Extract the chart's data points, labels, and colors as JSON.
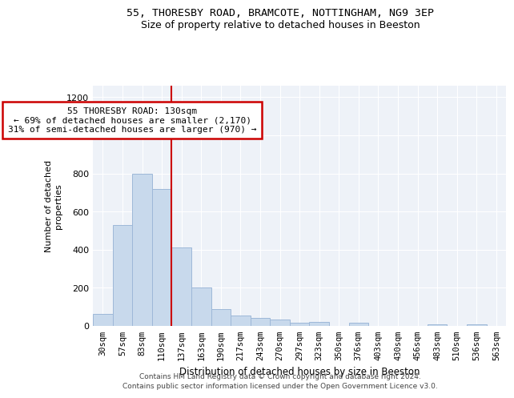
{
  "title1": "55, THORESBY ROAD, BRAMCOTE, NOTTINGHAM, NG9 3EP",
  "title2": "Size of property relative to detached houses in Beeston",
  "xlabel": "Distribution of detached houses by size in Beeston",
  "ylabel": "Number of detached\nproperties",
  "categories": [
    "30sqm",
    "57sqm",
    "83sqm",
    "110sqm",
    "137sqm",
    "163sqm",
    "190sqm",
    "217sqm",
    "243sqm",
    "270sqm",
    "297sqm",
    "323sqm",
    "350sqm",
    "376sqm",
    "403sqm",
    "430sqm",
    "456sqm",
    "483sqm",
    "510sqm",
    "536sqm",
    "563sqm"
  ],
  "values": [
    65,
    530,
    800,
    720,
    410,
    200,
    90,
    55,
    40,
    35,
    15,
    20,
    0,
    15,
    0,
    0,
    0,
    10,
    0,
    10,
    0
  ],
  "bar_color": "#c8d9ec",
  "bar_edge_color": "#9eb8d8",
  "vline_x": 4.0,
  "vline_color": "#cc0000",
  "annotation_text": "55 THORESBY ROAD: 130sqm\n← 69% of detached houses are smaller (2,170)\n31% of semi-detached houses are larger (970) →",
  "annotation_box_color": "#cc0000",
  "ylim": [
    0,
    1260
  ],
  "yticks": [
    0,
    200,
    400,
    600,
    800,
    1000,
    1200
  ],
  "bg_color": "#eef2f8",
  "footer1": "Contains HM Land Registry data © Crown copyright and database right 2024.",
  "footer2": "Contains public sector information licensed under the Open Government Licence v3.0."
}
